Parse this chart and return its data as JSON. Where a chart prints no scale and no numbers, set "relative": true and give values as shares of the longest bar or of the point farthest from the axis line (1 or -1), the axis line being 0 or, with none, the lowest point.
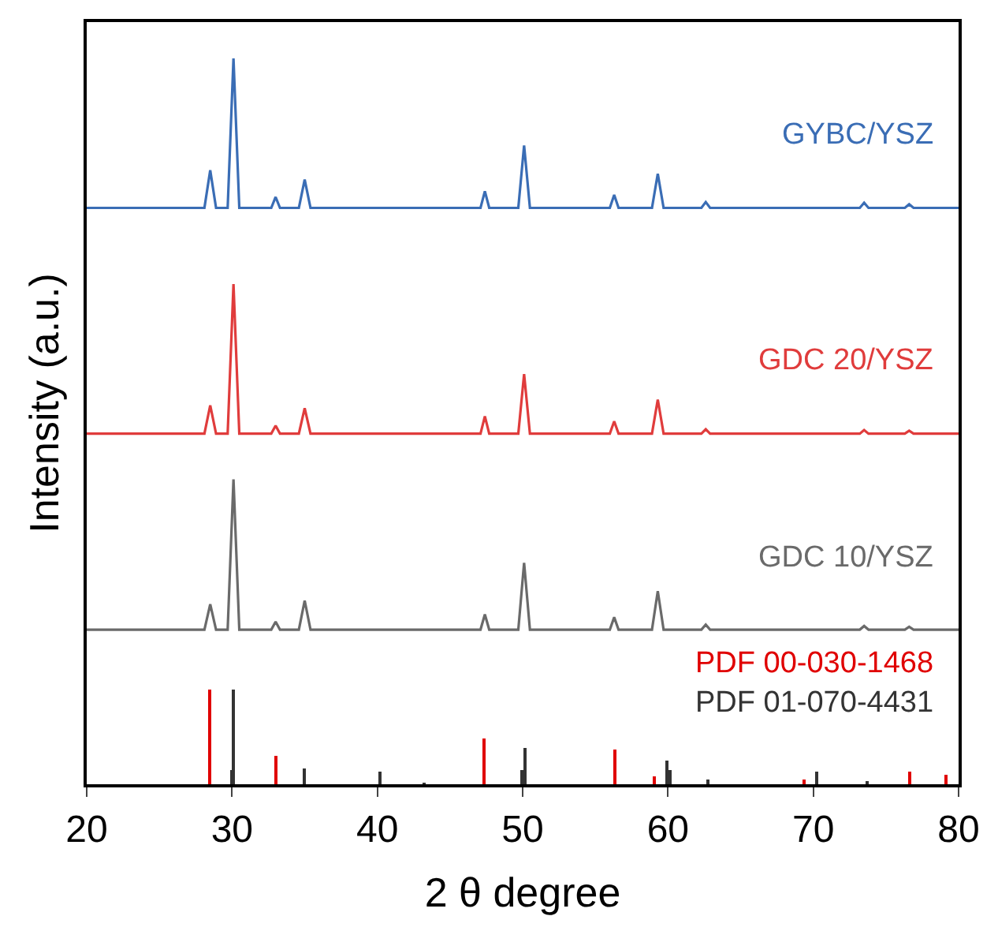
{
  "chart_data": {
    "type": "line",
    "relative": true,
    "xlabel": "2 θ degree",
    "ylabel": "Intensity (a.u.)",
    "x": [
      20,
      28.1,
      28.5,
      28.9,
      29.7,
      30.1,
      30.5,
      32.7,
      33.0,
      33.3,
      34.6,
      35.0,
      35.4,
      47.1,
      47.4,
      47.7,
      49.7,
      50.1,
      50.5,
      56.0,
      56.3,
      56.6,
      58.9,
      59.3,
      59.7,
      62.3,
      62.6,
      62.9,
      73.2,
      73.5,
      73.8,
      76.3,
      76.6,
      76.9,
      80
    ],
    "xlim": [
      20,
      80
    ],
    "xticks": [
      20,
      30,
      40,
      50,
      60,
      70,
      80
    ],
    "series": [
      {
        "name": "GYBC/YSZ",
        "color": "#3a6db5",
        "values": [
          0.794,
          0.794,
          0.846,
          0.794,
          0.794,
          1.0,
          0.794,
          0.794,
          0.809,
          0.794,
          0.794,
          0.833,
          0.794,
          0.794,
          0.817,
          0.794,
          0.794,
          0.88,
          0.794,
          0.794,
          0.812,
          0.794,
          0.794,
          0.841,
          0.794,
          0.794,
          0.802,
          0.794,
          0.794,
          0.801,
          0.794,
          0.794,
          0.799,
          0.794,
          0.794
        ]
      },
      {
        "name": "GDC 20/YSZ",
        "color": "#e03c3c",
        "values": [
          0.483,
          0.483,
          0.522,
          0.483,
          0.483,
          0.689,
          0.483,
          0.483,
          0.494,
          0.483,
          0.483,
          0.518,
          0.483,
          0.483,
          0.507,
          0.483,
          0.483,
          0.565,
          0.483,
          0.483,
          0.5,
          0.483,
          0.483,
          0.53,
          0.483,
          0.483,
          0.489,
          0.483,
          0.483,
          0.488,
          0.483,
          0.483,
          0.487,
          0.483,
          0.483
        ]
      },
      {
        "name": "GDC 10/YSZ",
        "color": "#6a6a6a",
        "values": [
          0.213,
          0.213,
          0.248,
          0.213,
          0.213,
          0.42,
          0.213,
          0.213,
          0.224,
          0.213,
          0.213,
          0.253,
          0.213,
          0.213,
          0.234,
          0.213,
          0.213,
          0.305,
          0.213,
          0.213,
          0.23,
          0.213,
          0.213,
          0.266,
          0.213,
          0.213,
          0.22,
          0.213,
          0.213,
          0.218,
          0.213,
          0.213,
          0.217,
          0.213,
          0.213
        ]
      },
      {
        "name": "PDF 00-030-1468",
        "type": "bar",
        "color": "#e00000",
        "x": [
          28.5,
          33.0,
          47.4,
          56.3,
          59.1,
          69.4,
          76.6,
          79.1
        ],
        "values": [
          0.131,
          0.039,
          0.063,
          0.048,
          0.011,
          0.006,
          0.017,
          0.013
        ]
      },
      {
        "name": "PDF 01-070-4431",
        "type": "bar",
        "color": "#333333",
        "x": [
          29.95,
          30.1,
          35.0,
          40.2,
          43.2,
          49.9,
          50.2,
          59.9,
          60.2,
          62.7,
          70.2,
          73.7
        ],
        "values": [
          0.02,
          0.131,
          0.022,
          0.017,
          0.002,
          0.02,
          0.051,
          0.032,
          0.02,
          0.007,
          0.017,
          0.004
        ]
      }
    ]
  }
}
